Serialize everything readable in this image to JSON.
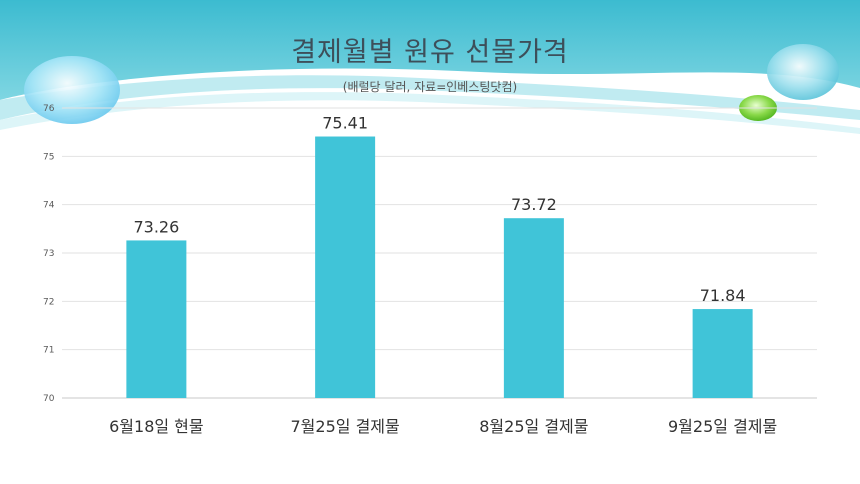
{
  "title": "결제월별 원유 선물가격",
  "subtitle": "(배럴당 달러, 자료=인베스팅닷컴)",
  "colors": {
    "bar": "#40C4D8",
    "header": "#4FC3D6",
    "grid": "#E2E2E2"
  },
  "chart_data": {
    "type": "bar",
    "categories": [
      "6월18일 현물",
      "7월25일 결제물",
      "8월25일 결제물",
      "9월25일 결제물"
    ],
    "values": [
      73.26,
      75.41,
      73.72,
      71.84
    ],
    "data_labels": [
      "73.26",
      "75.41",
      "73.72",
      "71.84"
    ],
    "ylim": [
      70,
      76
    ],
    "yticks": [
      "70",
      "71",
      "72",
      "73",
      "74",
      "75",
      "76"
    ],
    "grid": true,
    "legend": "none"
  }
}
